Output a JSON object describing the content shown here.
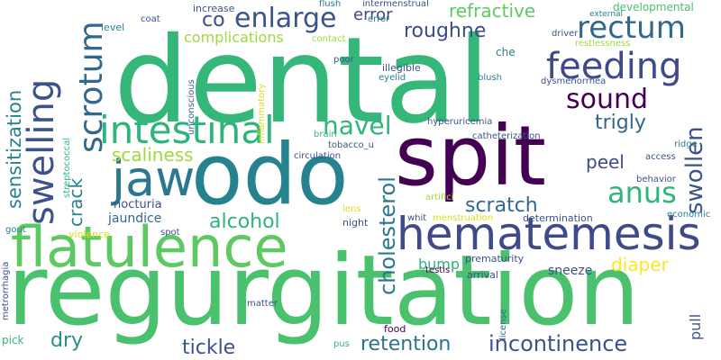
{
  "colors": {
    "background": "#ffffff",
    "palette": [
      "#440154",
      "#46327e",
      "#365c8d",
      "#277f8e",
      "#1fa187",
      "#4ac16d",
      "#a0da39",
      "#fde725"
    ]
  },
  "words": [
    {
      "text": "dental",
      "color": "#35b779"
    },
    {
      "text": "regurgitation",
      "color": "#4ac16d"
    },
    {
      "text": "spit",
      "color": "#440154"
    },
    {
      "text": "odo",
      "color": "#26828e"
    },
    {
      "text": "flatulence",
      "color": "#5ec962"
    },
    {
      "text": "hematemesis",
      "color": "#3e4a89"
    },
    {
      "text": "swelling",
      "color": "#3b528b"
    },
    {
      "text": "jaw",
      "color": "#2a788e"
    },
    {
      "text": "intestinal",
      "color": "#2fb47c"
    },
    {
      "text": "feeding",
      "color": "#3e4a89"
    },
    {
      "text": "rectum",
      "color": "#31688e"
    },
    {
      "text": "scrotum",
      "color": "#31688e"
    },
    {
      "text": "enlarge",
      "color": "#3b528b"
    },
    {
      "text": "sensitization",
      "color": "#26828e"
    },
    {
      "text": "cholesterol",
      "color": "#2a788e"
    },
    {
      "text": "incontinence",
      "color": "#3b528b"
    },
    {
      "text": "retention",
      "color": "#2c728e"
    },
    {
      "text": "swollen",
      "color": "#3b528b"
    },
    {
      "text": "sound",
      "color": "#440154"
    },
    {
      "text": "navel",
      "color": "#2fb47c"
    },
    {
      "text": "anus",
      "color": "#2fb47c"
    },
    {
      "text": "alcohol",
      "color": "#2fb47c"
    },
    {
      "text": "scratch",
      "color": "#31688e"
    },
    {
      "text": "roughne",
      "color": "#3e4a89"
    },
    {
      "text": "trigly",
      "color": "#31688e"
    },
    {
      "text": "refractive",
      "color": "#5ec962"
    },
    {
      "text": "scaliness",
      "color": "#a0da39"
    },
    {
      "text": "peel",
      "color": "#3e4a89"
    },
    {
      "text": "crack",
      "color": "#26828e"
    },
    {
      "text": "tickle",
      "color": "#3b528b"
    },
    {
      "text": "dry",
      "color": "#21918c"
    },
    {
      "text": "diaper",
      "color": "#fde725"
    },
    {
      "text": "error",
      "color": "#3e4a89"
    },
    {
      "text": "co",
      "color": "#3e4a89"
    },
    {
      "text": "complications",
      "color": "#a0da39"
    },
    {
      "text": "jaundice",
      "color": "#31688e"
    },
    {
      "text": "nocturia",
      "color": "#3b528b"
    },
    {
      "text": "bump",
      "color": "#2fb47c"
    },
    {
      "text": "sneeze",
      "color": "#3b528b"
    },
    {
      "text": "pull",
      "color": "#3b528b"
    },
    {
      "text": "determination",
      "color": "#3b528b"
    },
    {
      "text": "prematurity",
      "color": "#3b528b"
    },
    {
      "text": "night",
      "color": "#3b528b"
    },
    {
      "text": "arrival",
      "color": "#3b528b"
    },
    {
      "text": "testis",
      "color": "#440154"
    },
    {
      "text": "license",
      "color": "#31688e"
    },
    {
      "text": "developmental",
      "color": "#4ac16d"
    },
    {
      "text": "restlessness",
      "color": "#a0da39"
    },
    {
      "text": "che",
      "color": "#26828e"
    },
    {
      "text": "driver",
      "color": "#3b528b"
    },
    {
      "text": "dysmenorrhea",
      "color": "#3b528b"
    },
    {
      "text": "blush",
      "color": "#26828e"
    },
    {
      "text": "illegible",
      "color": "#3b528b"
    },
    {
      "text": "eyelid",
      "color": "#26828e"
    },
    {
      "text": "poor",
      "color": "#3b528b"
    },
    {
      "text": "hyperuricemia",
      "color": "#3b528b"
    },
    {
      "text": "catheterization",
      "color": "#3b528b"
    },
    {
      "text": "intermenstrual",
      "color": "#3b528b"
    },
    {
      "text": "flush",
      "color": "#2a788e"
    },
    {
      "text": "increase",
      "color": "#3b528b"
    },
    {
      "text": "coat",
      "color": "#3b528b"
    },
    {
      "text": "level",
      "color": "#26828e"
    },
    {
      "text": "error",
      "color": "#26828e"
    },
    {
      "text": "external",
      "color": "#26828e"
    },
    {
      "text": "contact",
      "color": "#a0da39"
    },
    {
      "text": "inflammatory",
      "color": "#d8e219"
    },
    {
      "text": "unconscious",
      "color": "#31688e"
    },
    {
      "text": "brain",
      "color": "#35b779"
    },
    {
      "text": "tobacco_u",
      "color": "#3b528b"
    },
    {
      "text": "circulation",
      "color": "#3b528b"
    },
    {
      "text": "streptococcal",
      "color": "#35b779"
    },
    {
      "text": "lens",
      "color": "#d8e219"
    },
    {
      "text": "artifici",
      "color": "#a0da39"
    },
    {
      "text": "whit",
      "color": "#3b528b"
    },
    {
      "text": "menstruation",
      "color": "#d8e219"
    },
    {
      "text": "ridge",
      "color": "#26828e"
    },
    {
      "text": "access",
      "color": "#3b528b"
    },
    {
      "text": "behavior",
      "color": "#3b528b"
    },
    {
      "text": "economic",
      "color": "#26828e"
    },
    {
      "text": "gout",
      "color": "#26828e"
    },
    {
      "text": "violence",
      "color": "#d8e219"
    },
    {
      "text": "spot",
      "color": "#3b528b"
    },
    {
      "text": "metrorrhagia",
      "color": "#3b528b"
    },
    {
      "text": "matter",
      "color": "#3b528b"
    },
    {
      "text": "food",
      "color": "#440154"
    },
    {
      "text": "pick",
      "color": "#35b779"
    },
    {
      "text": "pus",
      "color": "#35b779"
    }
  ]
}
